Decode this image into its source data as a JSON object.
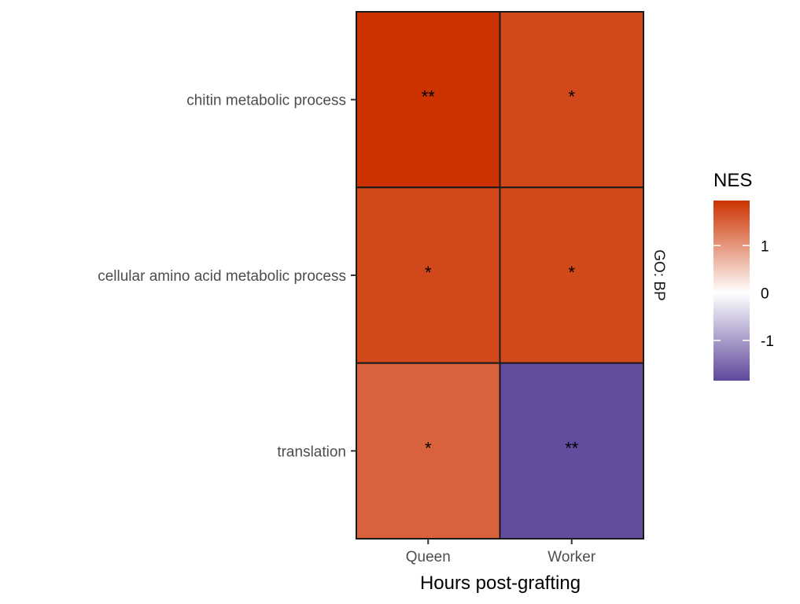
{
  "chart_data": {
    "type": "heatmap",
    "xlabel": "Hours post-grafting",
    "x": [
      "Queen",
      "Worker"
    ],
    "y": [
      "chitin metabolic process",
      "cellular amino acid metabolic process",
      "translation"
    ],
    "facet_label": "GO: BP",
    "values": [
      [
        1.95,
        1.75
      ],
      [
        1.75,
        1.75
      ],
      [
        1.5,
        -1.8
      ]
    ],
    "significance": [
      [
        "**",
        "*"
      ],
      [
        "*",
        "*"
      ],
      [
        "*",
        "**"
      ]
    ],
    "legend": {
      "title": "NES",
      "position": "right",
      "ticks": [
        1,
        0,
        -1
      ],
      "tick_labels": [
        "1",
        "0",
        "-1"
      ],
      "range": [
        -1.85,
        1.95
      ],
      "colors": {
        "low": "#5e479b",
        "mid": "#ffffff",
        "high": "#cc3300"
      }
    },
    "grid": false
  }
}
